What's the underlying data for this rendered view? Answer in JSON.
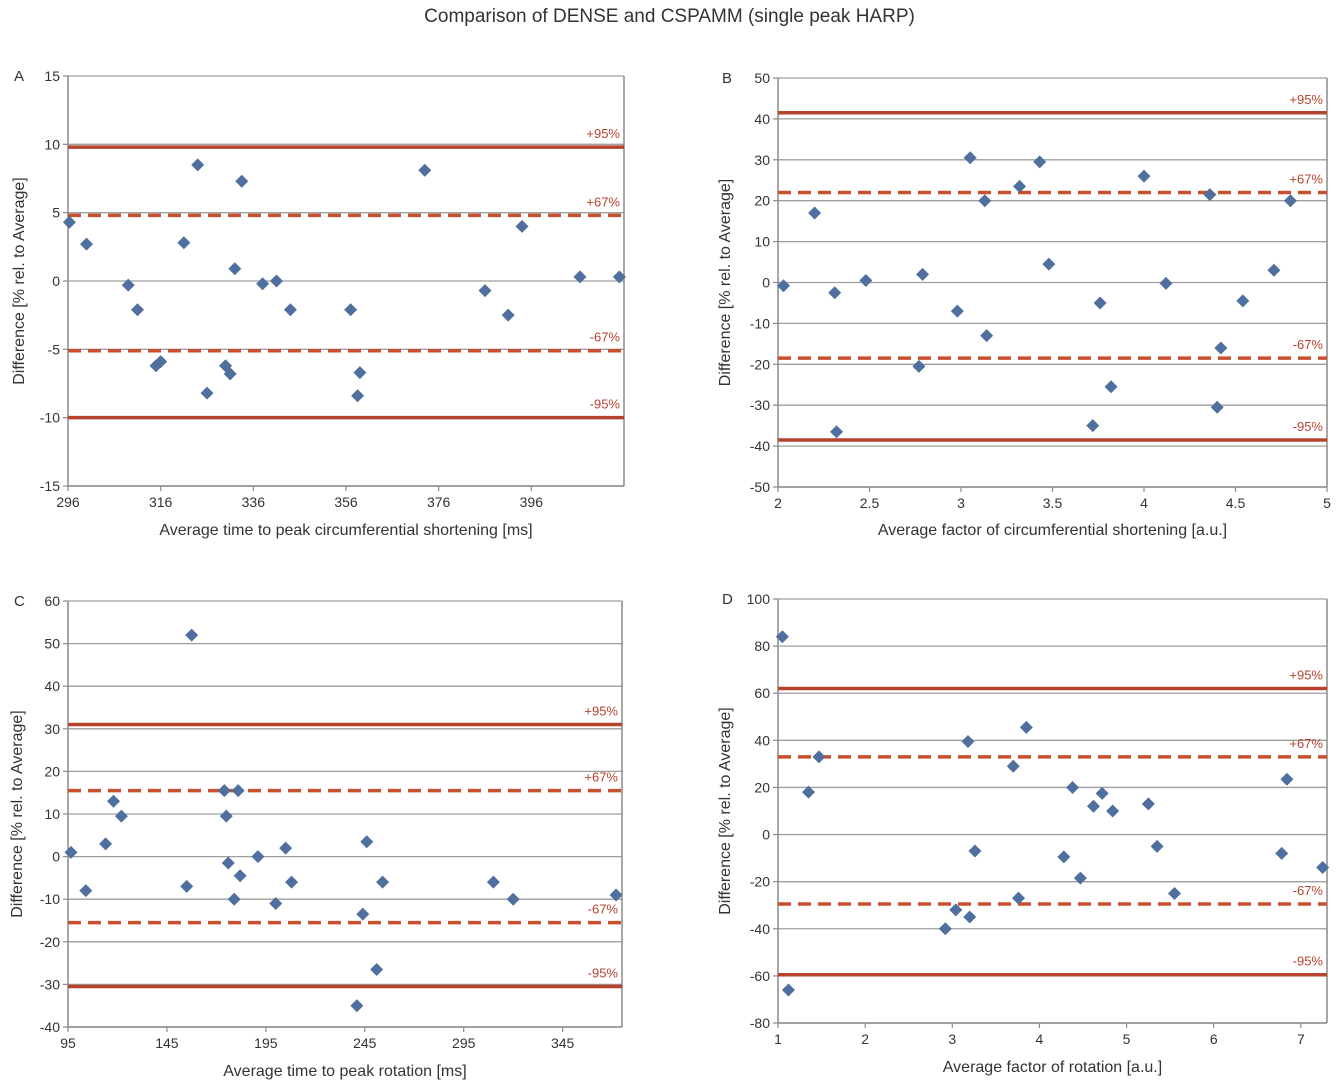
{
  "title": "Comparison of DENSE and CSPAMM (single peak HARP)",
  "colors": {
    "points": "#4f6f9e",
    "solid_line": "#b5432e",
    "dashed_line": "#c8502e",
    "grid": "#9e9e9e"
  },
  "chart_data": [
    {
      "panel": "A",
      "type": "scatter",
      "xlabel": "Average time to peak circumferential shortening [ms]",
      "ylabel": "Difference [% rel. to Average]",
      "xlim": [
        296,
        416
      ],
      "ylim": [
        -15,
        15
      ],
      "xticks": [
        296,
        316,
        336,
        356,
        376,
        396
      ],
      "yticks": [
        -15,
        -10,
        -5,
        0,
        5,
        10,
        15
      ],
      "grid": true,
      "reference_lines": [
        {
          "label": "+95%",
          "value": 9.8,
          "style": "solid"
        },
        {
          "label": "+67%",
          "value": 4.8,
          "style": "dashed"
        },
        {
          "label": "-67%",
          "value": -5.1,
          "style": "dashed"
        },
        {
          "label": "-95%",
          "value": -10,
          "style": "solid"
        }
      ],
      "points": [
        [
          296.3,
          4.3
        ],
        [
          300,
          2.7
        ],
        [
          309,
          -0.3
        ],
        [
          311,
          -2.1
        ],
        [
          315,
          -6.2
        ],
        [
          316,
          -5.9
        ],
        [
          321,
          2.8
        ],
        [
          324,
          8.5
        ],
        [
          326,
          -8.2
        ],
        [
          330,
          -6.2
        ],
        [
          331,
          -6.8
        ],
        [
          332,
          0.9
        ],
        [
          333.5,
          7.3
        ],
        [
          338,
          -0.2
        ],
        [
          341,
          0
        ],
        [
          344,
          -2.1
        ],
        [
          357,
          -2.1
        ],
        [
          358.5,
          -8.4
        ],
        [
          359,
          -6.7
        ],
        [
          373,
          8.1
        ],
        [
          386,
          -0.7
        ],
        [
          391,
          -2.5
        ],
        [
          394,
          4.0
        ],
        [
          406.5,
          0.3
        ],
        [
          415,
          0.3
        ]
      ]
    },
    {
      "panel": "B",
      "type": "scatter",
      "xlabel": "Average factor of circumferential shortening [a.u.]",
      "ylabel": "Difference [% rel. to Average]",
      "xlim": [
        2,
        5
      ],
      "ylim": [
        -50,
        50
      ],
      "xticks": [
        2,
        2.5,
        3,
        3.5,
        4,
        4.5,
        5
      ],
      "yticks": [
        -50,
        -40,
        -30,
        -20,
        -10,
        0,
        10,
        20,
        30,
        40,
        50
      ],
      "grid": true,
      "reference_lines": [
        {
          "label": "+95%",
          "value": 41.5,
          "style": "solid"
        },
        {
          "label": "+67%",
          "value": 22,
          "style": "dashed"
        },
        {
          "label": "-67%",
          "value": -18.5,
          "style": "dashed"
        },
        {
          "label": "-95%",
          "value": -38.5,
          "style": "solid"
        }
      ],
      "points": [
        [
          2.03,
          -0.8
        ],
        [
          2.2,
          17
        ],
        [
          2.31,
          -2.5
        ],
        [
          2.32,
          -36.5
        ],
        [
          2.48,
          0.5
        ],
        [
          2.77,
          -20.5
        ],
        [
          2.79,
          2
        ],
        [
          2.98,
          -7
        ],
        [
          3.05,
          30.5
        ],
        [
          3.13,
          20
        ],
        [
          3.14,
          -13
        ],
        [
          3.32,
          23.5
        ],
        [
          3.43,
          29.5
        ],
        [
          3.48,
          4.5
        ],
        [
          3.72,
          -35
        ],
        [
          3.76,
          -5
        ],
        [
          3.82,
          -25.5
        ],
        [
          4.0,
          26
        ],
        [
          4.12,
          -0.2
        ],
        [
          4.36,
          21.5
        ],
        [
          4.4,
          -30.5
        ],
        [
          4.42,
          -16
        ],
        [
          4.54,
          -4.5
        ],
        [
          4.71,
          3
        ],
        [
          4.8,
          20
        ]
      ]
    },
    {
      "panel": "C",
      "type": "scatter",
      "xlabel": "Average time to peak rotation [ms]",
      "ylabel": "Difference [% rel. to Average]",
      "xlim": [
        95,
        375
      ],
      "ylim": [
        -40,
        60
      ],
      "xticks": [
        95,
        145,
        195,
        245,
        295,
        345
      ],
      "yticks": [
        -40,
        -30,
        -20,
        -10,
        0,
        10,
        20,
        30,
        40,
        50,
        60
      ],
      "grid": true,
      "reference_lines": [
        {
          "label": "+95%",
          "value": 31,
          "style": "solid"
        },
        {
          "label": "+67%",
          "value": 15.5,
          "style": "dashed"
        },
        {
          "label": "-67%",
          "value": -15.5,
          "style": "dashed"
        },
        {
          "label": "-95%",
          "value": -30.5,
          "style": "solid"
        }
      ],
      "points": [
        [
          96.5,
          1
        ],
        [
          104,
          -8
        ],
        [
          114,
          3
        ],
        [
          118,
          13
        ],
        [
          122,
          9.5
        ],
        [
          155,
          -7
        ],
        [
          157.5,
          52
        ],
        [
          174,
          15.5
        ],
        [
          175,
          9.5
        ],
        [
          176,
          -1.5
        ],
        [
          179,
          -10
        ],
        [
          181,
          15.5
        ],
        [
          182,
          -4.5
        ],
        [
          191,
          0
        ],
        [
          200,
          -11
        ],
        [
          205,
          2
        ],
        [
          208,
          -6
        ],
        [
          241,
          -35
        ],
        [
          244,
          -13.5
        ],
        [
          246,
          3.5
        ],
        [
          251,
          -26.5
        ],
        [
          254,
          -6
        ],
        [
          310,
          -6
        ],
        [
          320,
          -10
        ],
        [
          372,
          -9
        ]
      ]
    },
    {
      "panel": "D",
      "type": "scatter",
      "xlabel": "Average factor of rotation [a.u.]",
      "ylabel": "Difference [% rel. to Average]",
      "xlim": [
        1,
        7.3
      ],
      "ylim": [
        -80,
        100
      ],
      "xticks": [
        1,
        2,
        3,
        4,
        5,
        6,
        7
      ],
      "yticks": [
        -80,
        -60,
        -40,
        -20,
        0,
        20,
        40,
        60,
        80,
        100
      ],
      "grid": true,
      "reference_lines": [
        {
          "label": "+95%",
          "value": 62,
          "style": "solid"
        },
        {
          "label": "+67%",
          "value": 33,
          "style": "dashed"
        },
        {
          "label": "-67%",
          "value": -29.5,
          "style": "dashed"
        },
        {
          "label": "-95%",
          "value": -59.5,
          "style": "solid"
        }
      ],
      "points": [
        [
          1.05,
          84
        ],
        [
          1.12,
          -66
        ],
        [
          1.35,
          18
        ],
        [
          1.47,
          33
        ],
        [
          2.92,
          -40
        ],
        [
          3.04,
          -32
        ],
        [
          3.18,
          39.5
        ],
        [
          3.2,
          -35
        ],
        [
          3.26,
          -7
        ],
        [
          3.7,
          29
        ],
        [
          3.76,
          -27
        ],
        [
          3.85,
          45.5
        ],
        [
          4.28,
          -9.5
        ],
        [
          4.38,
          20
        ],
        [
          4.47,
          -18.5
        ],
        [
          4.62,
          12
        ],
        [
          4.72,
          17.5
        ],
        [
          4.84,
          10
        ],
        [
          5.25,
          13
        ],
        [
          5.35,
          -5
        ],
        [
          5.55,
          -25
        ],
        [
          6.78,
          -8
        ],
        [
          6.84,
          23.5
        ],
        [
          7.25,
          -14
        ]
      ]
    }
  ]
}
